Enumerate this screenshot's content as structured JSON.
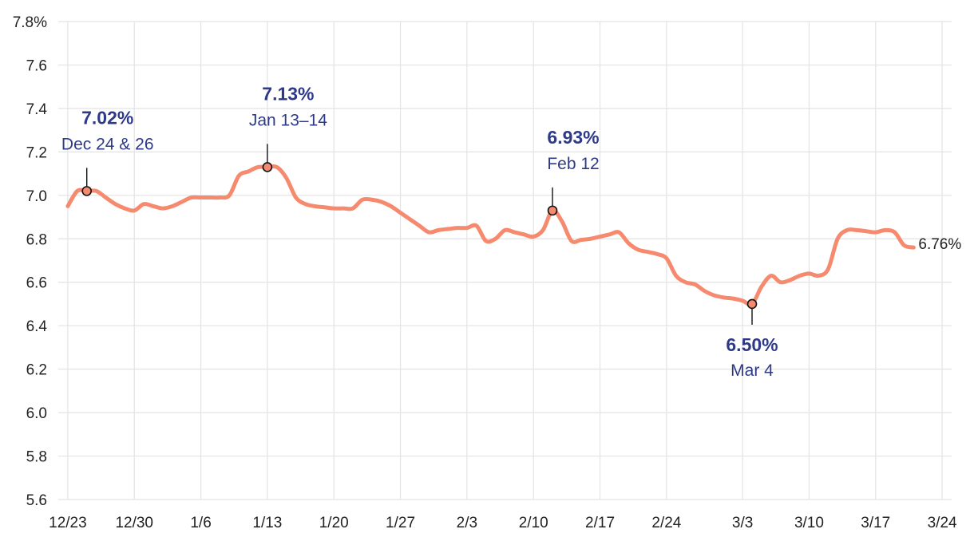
{
  "chart_data": {
    "type": "line",
    "ylim": [
      5.6,
      7.8
    ],
    "yticks": [
      5.6,
      5.8,
      6.0,
      6.2,
      6.4,
      6.6,
      6.8,
      7.0,
      7.2,
      7.4,
      7.6,
      7.8
    ],
    "ytick_labels": [
      "5.6",
      "5.8",
      "6.0",
      "6.2",
      "6.4",
      "6.6",
      "6.8",
      "7.0",
      "7.2",
      "7.4",
      "7.6",
      "7.8%"
    ],
    "xlim": [
      "2023-12-22",
      "2024-03-25"
    ],
    "xticks": [
      "2023-12-23",
      "2023-12-30",
      "2024-01-06",
      "2024-01-13",
      "2024-01-20",
      "2024-01-27",
      "2024-02-03",
      "2024-02-10",
      "2024-02-17",
      "2024-02-24",
      "2024-03-03",
      "2024-03-10",
      "2024-03-17",
      "2024-03-24"
    ],
    "xtick_labels": [
      "12/23",
      "12/30",
      "1/6",
      "1/13",
      "1/20",
      "1/27",
      "2/3",
      "2/10",
      "2/17",
      "2/24",
      "3/3",
      "3/10",
      "3/17",
      "3/24"
    ],
    "grid": true,
    "series": [
      {
        "color": "#f58a6e",
        "points": [
          [
            "2023-12-23",
            6.95
          ],
          [
            "2023-12-24",
            7.02
          ],
          [
            "2023-12-25",
            7.02
          ],
          [
            "2023-12-26",
            7.02
          ],
          [
            "2023-12-27",
            6.99
          ],
          [
            "2023-12-28",
            6.96
          ],
          [
            "2023-12-29",
            6.94
          ],
          [
            "2023-12-30",
            6.93
          ],
          [
            "2023-12-31",
            6.96
          ],
          [
            "2024-01-01",
            6.95
          ],
          [
            "2024-01-02",
            6.94
          ],
          [
            "2024-01-03",
            6.95
          ],
          [
            "2024-01-04",
            6.97
          ],
          [
            "2024-01-05",
            6.99
          ],
          [
            "2024-01-06",
            6.99
          ],
          [
            "2024-01-07",
            6.99
          ],
          [
            "2024-01-08",
            6.99
          ],
          [
            "2024-01-09",
            7.0
          ],
          [
            "2024-01-10",
            7.09
          ],
          [
            "2024-01-11",
            7.11
          ],
          [
            "2024-01-12",
            7.13
          ],
          [
            "2024-01-13",
            7.13
          ],
          [
            "2024-01-14",
            7.13
          ],
          [
            "2024-01-15",
            7.08
          ],
          [
            "2024-01-16",
            6.99
          ],
          [
            "2024-01-17",
            6.96
          ],
          [
            "2024-01-18",
            6.95
          ],
          [
            "2024-01-19",
            6.945
          ],
          [
            "2024-01-20",
            6.94
          ],
          [
            "2024-01-21",
            6.94
          ],
          [
            "2024-01-22",
            6.94
          ],
          [
            "2024-01-23",
            6.98
          ],
          [
            "2024-01-24",
            6.98
          ],
          [
            "2024-01-25",
            6.97
          ],
          [
            "2024-01-26",
            6.95
          ],
          [
            "2024-01-27",
            6.92
          ],
          [
            "2024-01-28",
            6.89
          ],
          [
            "2024-01-29",
            6.86
          ],
          [
            "2024-01-30",
            6.83
          ],
          [
            "2024-01-31",
            6.84
          ],
          [
            "2024-02-01",
            6.845
          ],
          [
            "2024-02-02",
            6.85
          ],
          [
            "2024-02-03",
            6.85
          ],
          [
            "2024-02-04",
            6.86
          ],
          [
            "2024-02-05",
            6.79
          ],
          [
            "2024-02-06",
            6.8
          ],
          [
            "2024-02-07",
            6.84
          ],
          [
            "2024-02-08",
            6.83
          ],
          [
            "2024-02-09",
            6.82
          ],
          [
            "2024-02-10",
            6.81
          ],
          [
            "2024-02-11",
            6.84
          ],
          [
            "2024-02-12",
            6.93
          ],
          [
            "2024-02-13",
            6.88
          ],
          [
            "2024-02-14",
            6.79
          ],
          [
            "2024-02-15",
            6.795
          ],
          [
            "2024-02-16",
            6.8
          ],
          [
            "2024-02-17",
            6.81
          ],
          [
            "2024-02-18",
            6.82
          ],
          [
            "2024-02-19",
            6.83
          ],
          [
            "2024-02-20",
            6.78
          ],
          [
            "2024-02-21",
            6.75
          ],
          [
            "2024-02-22",
            6.74
          ],
          [
            "2024-02-23",
            6.73
          ],
          [
            "2024-02-24",
            6.71
          ],
          [
            "2024-02-25",
            6.63
          ],
          [
            "2024-02-26",
            6.6
          ],
          [
            "2024-02-27",
            6.59
          ],
          [
            "2024-02-28",
            6.56
          ],
          [
            "2024-02-29",
            6.54
          ],
          [
            "2024-03-01",
            6.53
          ],
          [
            "2024-03-02",
            6.525
          ],
          [
            "2024-03-03",
            6.515
          ],
          [
            "2024-03-04",
            6.5
          ],
          [
            "2024-03-05",
            6.58
          ],
          [
            "2024-03-06",
            6.63
          ],
          [
            "2024-03-07",
            6.6
          ],
          [
            "2024-03-08",
            6.61
          ],
          [
            "2024-03-09",
            6.63
          ],
          [
            "2024-03-10",
            6.64
          ],
          [
            "2024-03-11",
            6.63
          ],
          [
            "2024-03-12",
            6.66
          ],
          [
            "2024-03-13",
            6.8
          ],
          [
            "2024-03-14",
            6.84
          ],
          [
            "2024-03-15",
            6.84
          ],
          [
            "2024-03-16",
            6.835
          ],
          [
            "2024-03-17",
            6.83
          ],
          [
            "2024-03-18",
            6.84
          ],
          [
            "2024-03-19",
            6.83
          ],
          [
            "2024-03-20",
            6.77
          ],
          [
            "2024-03-21",
            6.76
          ]
        ]
      }
    ],
    "annotations": [
      {
        "x": "2023-12-25",
        "y": 7.02,
        "value_label": "7.02%",
        "date_label": "Dec 24 & 26",
        "position": "above"
      },
      {
        "x": "2024-01-13",
        "y": 7.13,
        "value_label": "7.13%",
        "date_label": "Jan 13–14",
        "position": "above"
      },
      {
        "x": "2024-02-12",
        "y": 6.93,
        "value_label": "6.93%",
        "date_label": "Feb 12",
        "position": "above"
      },
      {
        "x": "2024-03-04",
        "y": 6.5,
        "value_label": "6.50%",
        "date_label": "Mar 4",
        "position": "below"
      }
    ],
    "end_label": {
      "x": "2024-03-21",
      "y": 6.76,
      "text": "6.76%"
    }
  }
}
